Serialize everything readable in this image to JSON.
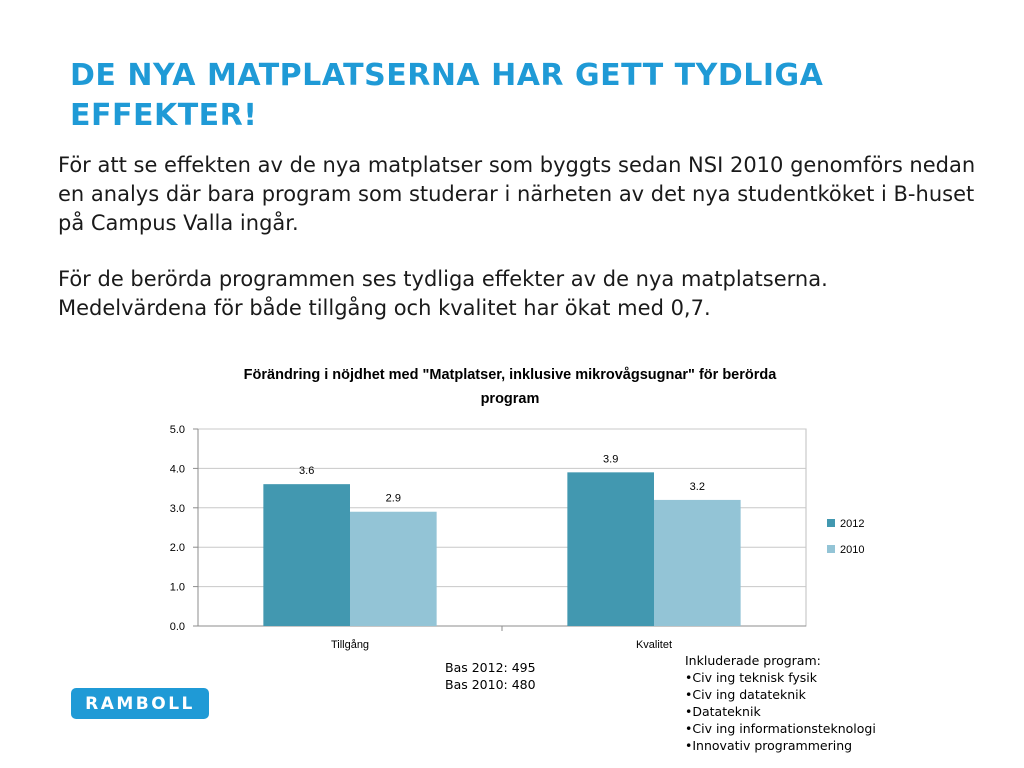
{
  "slide": {
    "title": "DE NYA MATPLATSERNA HAR GETT TYDLIGA EFFEKTER!",
    "paragraphs": [
      "För att se effekten av de nya matplatser som byggts sedan NSI 2010 genomförs nedan en analys där bara program som studerar i närheten av det nya studentköket i B-huset på Campus Valla ingår.",
      "För de berörda programmen ses tydliga effekter av de nya matplatserna. Medelvärdena för både tillgång och kvalitet har ökat med 0,7."
    ]
  },
  "chart_data": {
    "type": "bar",
    "title": "Förändring i nöjdhet med \"Matplatser, inklusive mikrovågsugnar\" för berörda program",
    "categories": [
      "Tillgång",
      "Kvalitet"
    ],
    "series": [
      {
        "name": "2012",
        "values": [
          3.6,
          3.9
        ],
        "labels": [
          "3.6",
          "3.9"
        ],
        "color": "#4298b0"
      },
      {
        "name": "2010",
        "values": [
          2.9,
          3.2
        ],
        "labels": [
          "2.9",
          "3.2"
        ],
        "color": "#93c4d6"
      }
    ],
    "ylim": [
      0,
      5
    ],
    "yticks": [
      0,
      1,
      2,
      3,
      4,
      5
    ],
    "ytick_labels": [
      "0.0",
      "1.0",
      "2.0",
      "3.0",
      "4.0",
      "5.0"
    ],
    "grid": true,
    "legend": "right"
  },
  "notes": {
    "bas": [
      "Bas 2012: 495",
      "Bas 2010: 480"
    ],
    "included_title": "Inkluderade program:",
    "included_items": [
      "•Civ ing teknisk fysik",
      "•Civ ing datateknik",
      "•Datateknik",
      "•Civ ing informationsteknologi",
      "•Innovativ programmering"
    ]
  },
  "logo": {
    "text": "RAMBOLL",
    "color": "#1f9ad6"
  }
}
